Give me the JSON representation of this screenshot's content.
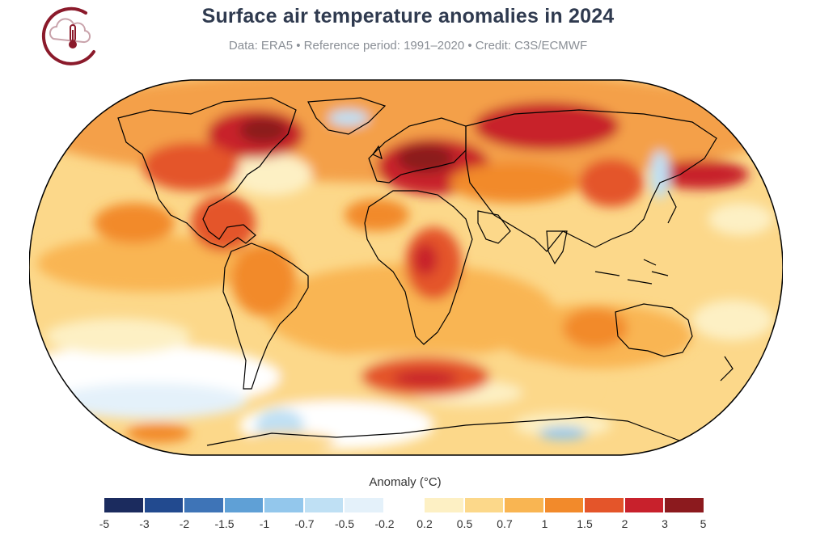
{
  "title": "Surface air temperature anomalies in 2024",
  "subtitle": "Data: ERA5 • Reference period: 1991–2020 • Credit: C3S/ECMWF",
  "logo": {
    "icon": "cloud-thermometer-icon",
    "color": "#8b1a2b"
  },
  "map": {
    "projection": "robinson",
    "ocean_base_color": "#fbd9a0",
    "coastline_color": "#000000"
  },
  "legend": {
    "title": "Anomaly (°C)",
    "bins": [
      {
        "from": -5,
        "to": -3,
        "color": "#1b2b5e"
      },
      {
        "from": -3,
        "to": -2,
        "color": "#224a8f"
      },
      {
        "from": -2,
        "to": -1.5,
        "color": "#3e74b7"
      },
      {
        "from": -1.5,
        "to": -1,
        "color": "#5fa0d6"
      },
      {
        "from": -1,
        "to": -0.7,
        "color": "#93c7ec"
      },
      {
        "from": -0.7,
        "to": -0.5,
        "color": "#bfe0f4"
      },
      {
        "from": -0.5,
        "to": -0.2,
        "color": "#e4f1fa"
      },
      {
        "from": -0.2,
        "to": 0.2,
        "color": "#ffffff"
      },
      {
        "from": 0.2,
        "to": 0.5,
        "color": "#fdf0c4"
      },
      {
        "from": 0.5,
        "to": 0.7,
        "color": "#fcd88a"
      },
      {
        "from": 0.7,
        "to": 1,
        "color": "#f9b552"
      },
      {
        "from": 1,
        "to": 1.5,
        "color": "#f28a2b"
      },
      {
        "from": 1.5,
        "to": 2,
        "color": "#e4552a"
      },
      {
        "from": 2,
        "to": 3,
        "color": "#c8212c"
      },
      {
        "from": 3,
        "to": 5,
        "color": "#8c1a1e"
      }
    ],
    "tick_labels": [
      "-5",
      "-3",
      "-2",
      "-1.5",
      "-1",
      "-0.7",
      "-0.5",
      "-0.2",
      "0.2",
      "0.5",
      "0.7",
      "1",
      "1.5",
      "2",
      "3",
      "5"
    ]
  }
}
